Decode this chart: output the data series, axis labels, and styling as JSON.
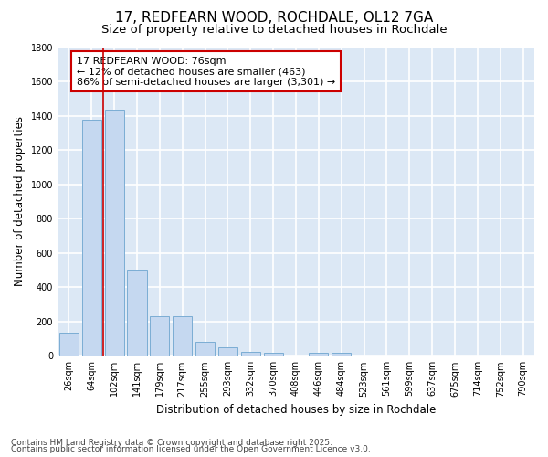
{
  "title1": "17, REDFEARN WOOD, ROCHDALE, OL12 7GA",
  "title2": "Size of property relative to detached houses in Rochdale",
  "xlabel": "Distribution of detached houses by size in Rochdale",
  "ylabel": "Number of detached properties",
  "categories": [
    "26sqm",
    "64sqm",
    "102sqm",
    "141sqm",
    "179sqm",
    "217sqm",
    "255sqm",
    "293sqm",
    "332sqm",
    "370sqm",
    "408sqm",
    "446sqm",
    "484sqm",
    "523sqm",
    "561sqm",
    "599sqm",
    "637sqm",
    "675sqm",
    "714sqm",
    "752sqm",
    "790sqm"
  ],
  "values": [
    135,
    1375,
    1435,
    500,
    230,
    230,
    80,
    50,
    25,
    20,
    0,
    15,
    15,
    0,
    0,
    0,
    0,
    0,
    0,
    0,
    0
  ],
  "bar_color": "#c5d8f0",
  "bar_edge_color": "#7badd4",
  "red_line_x": 1.5,
  "annotation_text": "17 REDFEARN WOOD: 76sqm\n← 12% of detached houses are smaller (463)\n86% of semi-detached houses are larger (3,301) →",
  "annotation_box_color": "#ffffff",
  "annotation_box_edge_color": "#cc0000",
  "footer1": "Contains HM Land Registry data © Crown copyright and database right 2025.",
  "footer2": "Contains public sector information licensed under the Open Government Licence v3.0.",
  "ylim": [
    0,
    1800
  ],
  "yticks": [
    0,
    200,
    400,
    600,
    800,
    1000,
    1200,
    1400,
    1600,
    1800
  ],
  "background_color": "#ffffff",
  "plot_bg_color": "#dce8f5",
  "grid_color": "#ffffff",
  "title_fontsize": 11,
  "subtitle_fontsize": 9.5,
  "axis_label_fontsize": 8.5,
  "tick_fontsize": 7,
  "annotation_fontsize": 8,
  "footer_fontsize": 6.5
}
